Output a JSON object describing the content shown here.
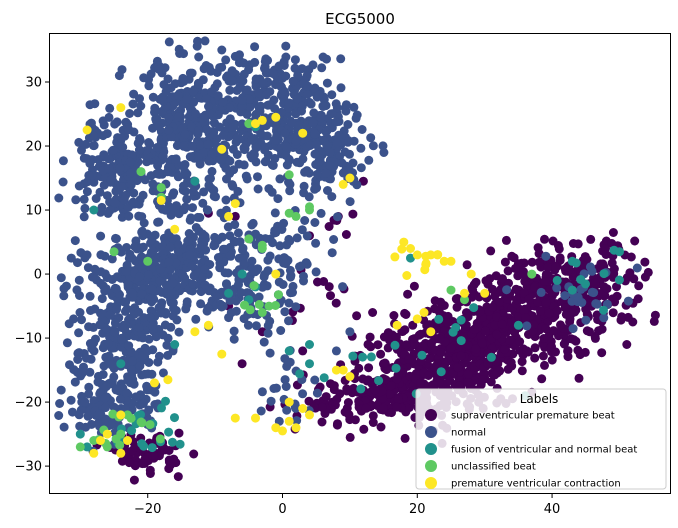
{
  "chart_data": {
    "type": "scatter",
    "title": "ECG5000",
    "xlabel": "",
    "ylabel": "",
    "xlim": [
      -34.5,
      57.5
    ],
    "ylim": [
      -34.2,
      37.5
    ],
    "xticks": [
      -20,
      0,
      20,
      40
    ],
    "yticks": [
      -30,
      -20,
      -10,
      0,
      10,
      20,
      30
    ],
    "grid": false,
    "legend": {
      "title": "Labels",
      "placement": "lower-right",
      "entries": [
        "supraventricular premature beat",
        "normal",
        "fusion of ventricular and normal beat",
        "unclassified beat",
        "premature ventricular contraction"
      ]
    },
    "series": [
      {
        "name": "supraventricular premature beat",
        "color": "#440154",
        "clusters": [
          {
            "cx": 28,
            "cy": -11,
            "sx": 9,
            "sy": 4,
            "n": 650,
            "rot": 0.45
          },
          {
            "cx": 42,
            "cy": -3,
            "sx": 6,
            "sy": 4,
            "n": 250,
            "rot": 0.3
          },
          {
            "cx": 17,
            "cy": -19,
            "sx": 7,
            "sy": 2,
            "n": 180,
            "rot": 0.1
          },
          {
            "cx": -20,
            "cy": -28,
            "sx": 2.5,
            "sy": 1.5,
            "n": 60,
            "rot": 0
          },
          {
            "cx": 8,
            "cy": 9,
            "sx": 2,
            "sy": 1.5,
            "n": 6,
            "rot": 0
          },
          {
            "cx": 6,
            "cy": -5,
            "sx": 3,
            "sy": 3,
            "n": 10,
            "rot": 0
          }
        ],
        "points": [
          [
            -11,
            9.5
          ],
          [
            -7,
            9
          ],
          [
            -6,
            -14
          ],
          [
            -8,
            -5
          ],
          [
            4,
            6
          ],
          [
            12,
            14.5
          ],
          [
            3,
            -12
          ],
          [
            -3,
            -9
          ]
        ]
      },
      {
        "name": "normal",
        "color": "#3b528b",
        "clusters": [
          {
            "cx": -13,
            "cy": 22,
            "sx": 5,
            "sy": 6,
            "n": 420,
            "rot": 0
          },
          {
            "cx": 0,
            "cy": 26,
            "sx": 4.5,
            "sy": 4.5,
            "n": 260,
            "rot": 0
          },
          {
            "cx": -25,
            "cy": 17,
            "sx": 3.2,
            "sy": 4,
            "n": 170,
            "rot": 0
          },
          {
            "cx": 6,
            "cy": 19,
            "sx": 3.5,
            "sy": 4,
            "n": 150,
            "rot": 0
          },
          {
            "cx": -16,
            "cy": 1,
            "sx": 6,
            "sy": 4,
            "n": 380,
            "rot": 0
          },
          {
            "cx": -24,
            "cy": -9,
            "sx": 3.5,
            "sy": 5,
            "n": 210,
            "rot": 0
          },
          {
            "cx": -25,
            "cy": -20,
            "sx": 3.5,
            "sy": 3,
            "n": 120,
            "rot": 0
          },
          {
            "cx": -4,
            "cy": -2,
            "sx": 3,
            "sy": 4,
            "n": 70,
            "rot": 0
          },
          {
            "cx": 3,
            "cy": 5,
            "sx": 2.5,
            "sy": 4,
            "n": 35,
            "rot": 0
          },
          {
            "cx": 1,
            "cy": -18,
            "sx": 3,
            "sy": 3,
            "n": 25,
            "rot": 0
          },
          {
            "cx": 45,
            "cy": -3,
            "sx": 4,
            "sy": 3,
            "n": 30,
            "rot": 0
          }
        ],
        "points": [
          [
            -9,
            35
          ],
          [
            -7,
            34
          ],
          [
            -21,
            4
          ],
          [
            -29,
            3
          ],
          [
            -31,
            -7
          ],
          [
            10,
            -9
          ],
          [
            8,
            -12
          ]
        ]
      },
      {
        "name": "fusion of ventricular and normal beat",
        "color": "#21918c",
        "clusters": [
          {
            "cx": -21,
            "cy": -24,
            "sx": 3,
            "sy": 2,
            "n": 18,
            "rot": 0
          },
          {
            "cx": 14,
            "cy": -16,
            "sx": 6,
            "sy": 2.5,
            "n": 10,
            "rot": 0
          },
          {
            "cx": 25,
            "cy": -8,
            "sx": 5,
            "sy": 3,
            "n": 8,
            "rot": 0
          },
          {
            "cx": 45,
            "cy": -1,
            "sx": 5,
            "sy": 2,
            "n": 8,
            "rot": 0
          }
        ],
        "points": [
          [
            -28,
            10
          ],
          [
            -13,
            14.5
          ],
          [
            -4,
            23
          ],
          [
            -6,
            0
          ],
          [
            -8,
            -3
          ],
          [
            -16,
            -11
          ],
          [
            -24,
            -14
          ],
          [
            -24,
            -26
          ],
          [
            -30,
            -25
          ],
          [
            -29,
            -27
          ],
          [
            1,
            -12
          ],
          [
            4,
            -11
          ],
          [
            19,
            2.5
          ],
          [
            43,
            -2.5
          ],
          [
            43,
            2
          ],
          [
            50,
            3.5
          ],
          [
            35,
            -8
          ],
          [
            31,
            -13
          ],
          [
            36,
            -19
          ],
          [
            4,
            -14
          ],
          [
            -5,
            -4
          ],
          [
            -4,
            -2
          ]
        ]
      },
      {
        "name": "unclassified beat",
        "color": "#5ec962",
        "clusters": [
          {
            "cx": -22,
            "cy": -24,
            "sx": 3,
            "sy": 2,
            "n": 12,
            "rot": 0
          },
          {
            "cx": -4,
            "cy": -3,
            "sx": 2.5,
            "sy": 2.5,
            "n": 6,
            "rot": 0
          }
        ],
        "points": [
          [
            -21,
            16
          ],
          [
            -18,
            13.5
          ],
          [
            -20,
            2
          ],
          [
            -25,
            3.5
          ],
          [
            -18,
            12
          ],
          [
            -5,
            23.5
          ],
          [
            1,
            15.5
          ],
          [
            1,
            9.5
          ],
          [
            2,
            9
          ],
          [
            4,
            10.5
          ],
          [
            4,
            10
          ],
          [
            -5,
            5.5
          ],
          [
            -3,
            4.5
          ],
          [
            -3,
            4
          ],
          [
            -2,
            -5
          ],
          [
            -26,
            -27
          ],
          [
            -30,
            -27
          ],
          [
            -28,
            -26
          ],
          [
            -23,
            -22
          ],
          [
            25,
            -2.5
          ],
          [
            37,
            0
          ],
          [
            27,
            -4
          ],
          [
            -24,
            -25
          ],
          [
            -3,
            -6
          ]
        ]
      },
      {
        "name": "premature ventricular contraction",
        "color": "#fde725",
        "clusters": [
          {
            "cx": 21,
            "cy": 2,
            "sx": 2,
            "sy": 1.2,
            "n": 8,
            "rot": 0
          }
        ],
        "points": [
          [
            -29,
            22.5
          ],
          [
            -24,
            26
          ],
          [
            -9,
            19.5
          ],
          [
            -3,
            24
          ],
          [
            -1,
            24.5
          ],
          [
            -4,
            23.5
          ],
          [
            3,
            22
          ],
          [
            -7,
            11
          ],
          [
            -18,
            11.5
          ],
          [
            -16,
            7
          ],
          [
            -8,
            9
          ],
          [
            -1,
            0
          ],
          [
            -13,
            -9
          ],
          [
            -9,
            -12.5
          ],
          [
            -11,
            -8
          ],
          [
            -17,
            -16.5
          ],
          [
            -19,
            -17
          ],
          [
            -7,
            -22.5
          ],
          [
            -4,
            -22.5
          ],
          [
            -1,
            -24
          ],
          [
            0,
            -24.5
          ],
          [
            1,
            -20
          ],
          [
            3,
            -21
          ],
          [
            -24,
            -22
          ],
          [
            -26,
            -25
          ],
          [
            -27,
            -26
          ],
          [
            -28,
            -28
          ],
          [
            -24,
            -28
          ],
          [
            -23,
            -26
          ],
          [
            20,
            3
          ],
          [
            22,
            3
          ],
          [
            23,
            3
          ],
          [
            24,
            2
          ],
          [
            25,
            2
          ],
          [
            28,
            0
          ],
          [
            27,
            -3
          ],
          [
            30,
            -3
          ],
          [
            18,
            5
          ],
          [
            19,
            4
          ],
          [
            9,
            14
          ],
          [
            10,
            15
          ],
          [
            8,
            -15
          ],
          [
            9,
            -15
          ],
          [
            10,
            -16
          ],
          [
            17,
            -8
          ],
          [
            20,
            -7
          ],
          [
            21,
            -6
          ],
          [
            22,
            -9
          ],
          [
            2,
            -24
          ],
          [
            1,
            -23
          ],
          [
            4,
            -22
          ]
        ]
      }
    ]
  }
}
